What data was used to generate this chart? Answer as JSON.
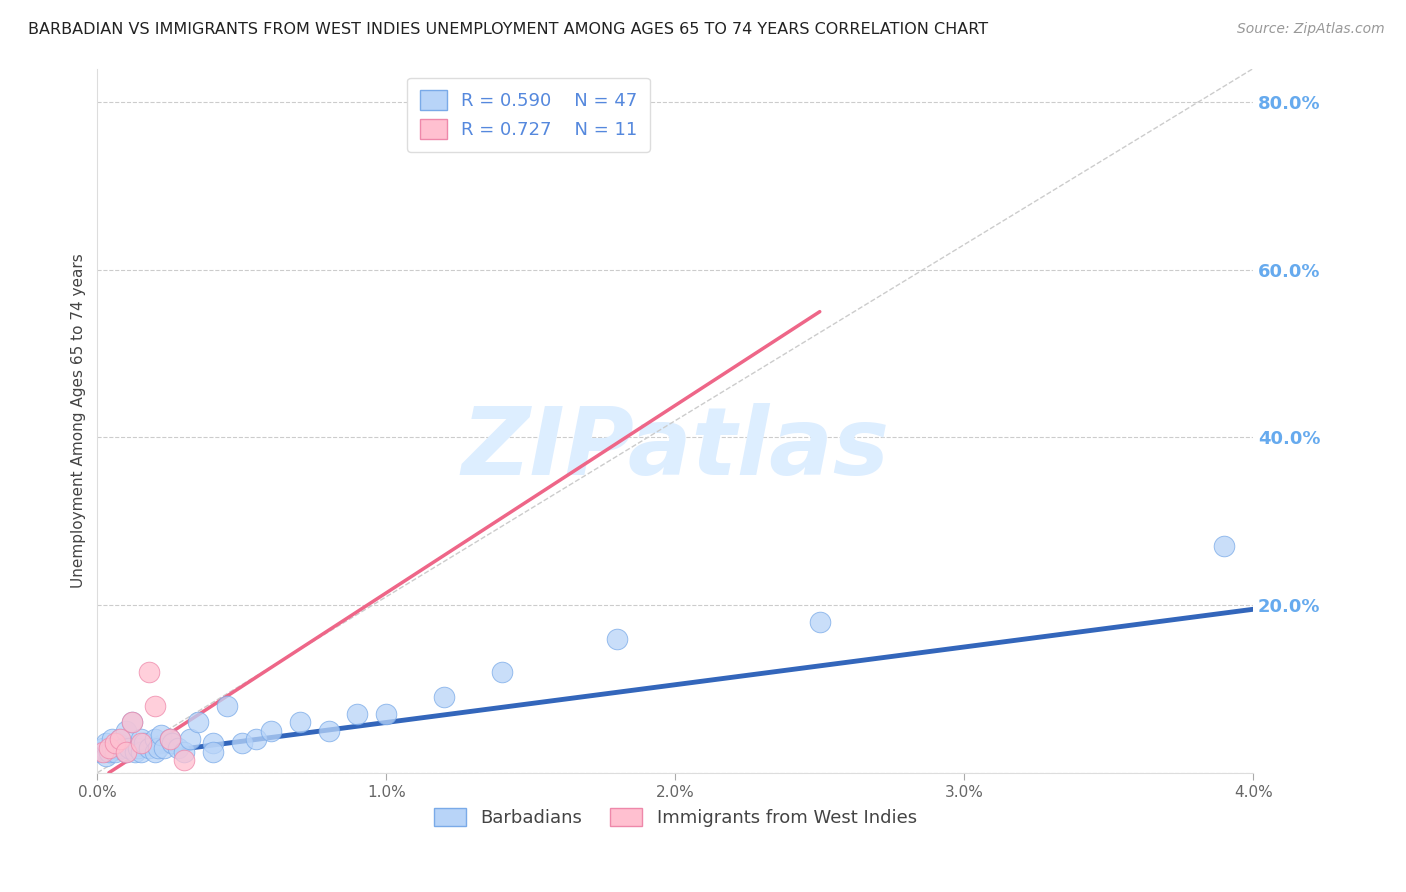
{
  "title": "BARBADIAN VS IMMIGRANTS FROM WEST INDIES UNEMPLOYMENT AMONG AGES 65 TO 74 YEARS CORRELATION CHART",
  "source": "Source: ZipAtlas.com",
  "ylabel_text": "Unemployment Among Ages 65 to 74 years",
  "x_min": 0.0,
  "x_max": 0.04,
  "y_min": 0.0,
  "y_max": 0.84,
  "x_ticks": [
    0.0,
    0.01,
    0.02,
    0.03,
    0.04
  ],
  "x_tick_labels": [
    "0.0%",
    "1.0%",
    "2.0%",
    "3.0%",
    "4.0%"
  ],
  "y_ticks": [
    0.0,
    0.2,
    0.4,
    0.6,
    0.8
  ],
  "y_tick_labels": [
    "0.0%",
    "20.0%",
    "40.0%",
    "60.0%",
    "80.0%"
  ],
  "diagonal_line": {
    "x": [
      0.0,
      0.04
    ],
    "y": [
      0.0,
      0.84
    ]
  },
  "blue_series": {
    "R": 0.59,
    "N": 47,
    "color": "#b8d4f8",
    "edge_color": "#7aaae8",
    "line_color": "#3366bb",
    "label": "Barbadians",
    "x": [
      0.0001,
      0.0002,
      0.0003,
      0.0003,
      0.0004,
      0.0005,
      0.0005,
      0.0006,
      0.0007,
      0.0008,
      0.0009,
      0.001,
      0.001,
      0.0011,
      0.0012,
      0.0013,
      0.0014,
      0.0015,
      0.0015,
      0.0016,
      0.0018,
      0.002,
      0.002,
      0.0021,
      0.0022,
      0.0023,
      0.0025,
      0.0026,
      0.0028,
      0.003,
      0.0032,
      0.0035,
      0.004,
      0.004,
      0.0045,
      0.005,
      0.0055,
      0.006,
      0.007,
      0.008,
      0.009,
      0.01,
      0.012,
      0.014,
      0.018,
      0.025,
      0.039
    ],
    "y": [
      0.025,
      0.03,
      0.02,
      0.035,
      0.025,
      0.03,
      0.04,
      0.025,
      0.035,
      0.04,
      0.03,
      0.025,
      0.05,
      0.03,
      0.06,
      0.025,
      0.03,
      0.04,
      0.025,
      0.035,
      0.03,
      0.04,
      0.025,
      0.03,
      0.045,
      0.03,
      0.04,
      0.035,
      0.03,
      0.025,
      0.04,
      0.06,
      0.035,
      0.025,
      0.08,
      0.035,
      0.04,
      0.05,
      0.06,
      0.05,
      0.07,
      0.07,
      0.09,
      0.12,
      0.16,
      0.18,
      0.27
    ],
    "trend_x": [
      0.0,
      0.04
    ],
    "trend_y": [
      0.015,
      0.195
    ]
  },
  "pink_series": {
    "R": 0.727,
    "N": 11,
    "color": "#ffc0d0",
    "edge_color": "#ee88aa",
    "line_color": "#ee6688",
    "label": "Immigrants from West Indies",
    "x": [
      0.0002,
      0.0004,
      0.0006,
      0.0008,
      0.001,
      0.0012,
      0.0015,
      0.0018,
      0.002,
      0.0025,
      0.003
    ],
    "y": [
      0.025,
      0.03,
      0.035,
      0.04,
      0.025,
      0.06,
      0.035,
      0.12,
      0.08,
      0.04,
      0.015
    ],
    "trend_x": [
      0.0004,
      0.025
    ],
    "trend_y": [
      0.0,
      0.55
    ]
  },
  "watermark_text": "ZIPatlas",
  "watermark_color": "#ddeeff",
  "background_color": "#ffffff",
  "grid_color": "#cccccc",
  "grid_linestyle": "--"
}
